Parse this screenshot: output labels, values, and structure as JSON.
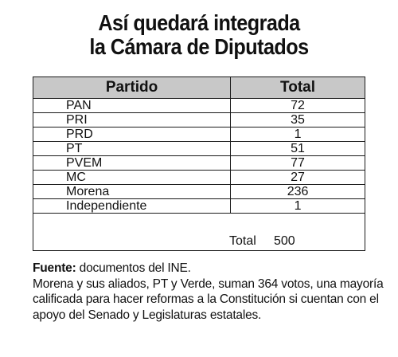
{
  "title": {
    "line1": "Así quedará integrada",
    "line2": "la Cámara de Diputados"
  },
  "chart_data": {
    "type": "table",
    "columns": [
      "Partido",
      "Total"
    ],
    "rows": [
      {
        "party": "PAN",
        "seats": 72
      },
      {
        "party": "PRI",
        "seats": 35
      },
      {
        "party": "PRD",
        "seats": 1
      },
      {
        "party": "PT",
        "seats": 51
      },
      {
        "party": "PVEM",
        "seats": 77
      },
      {
        "party": "MC",
        "seats": 27
      },
      {
        "party": "Morena",
        "seats": 236
      },
      {
        "party": "Independiente",
        "seats": 1
      }
    ],
    "total_label": "Total",
    "total_value": 500
  },
  "notes": {
    "source_label": "Fuente:",
    "source_text": " documentos del INE.",
    "body": "Morena y sus aliados, PT y Verde, suman 364 votos, una mayoría calificada para hacer reformas a la Constitución si cuentan con el apoyo del Senado y Legislaturas estatales."
  }
}
